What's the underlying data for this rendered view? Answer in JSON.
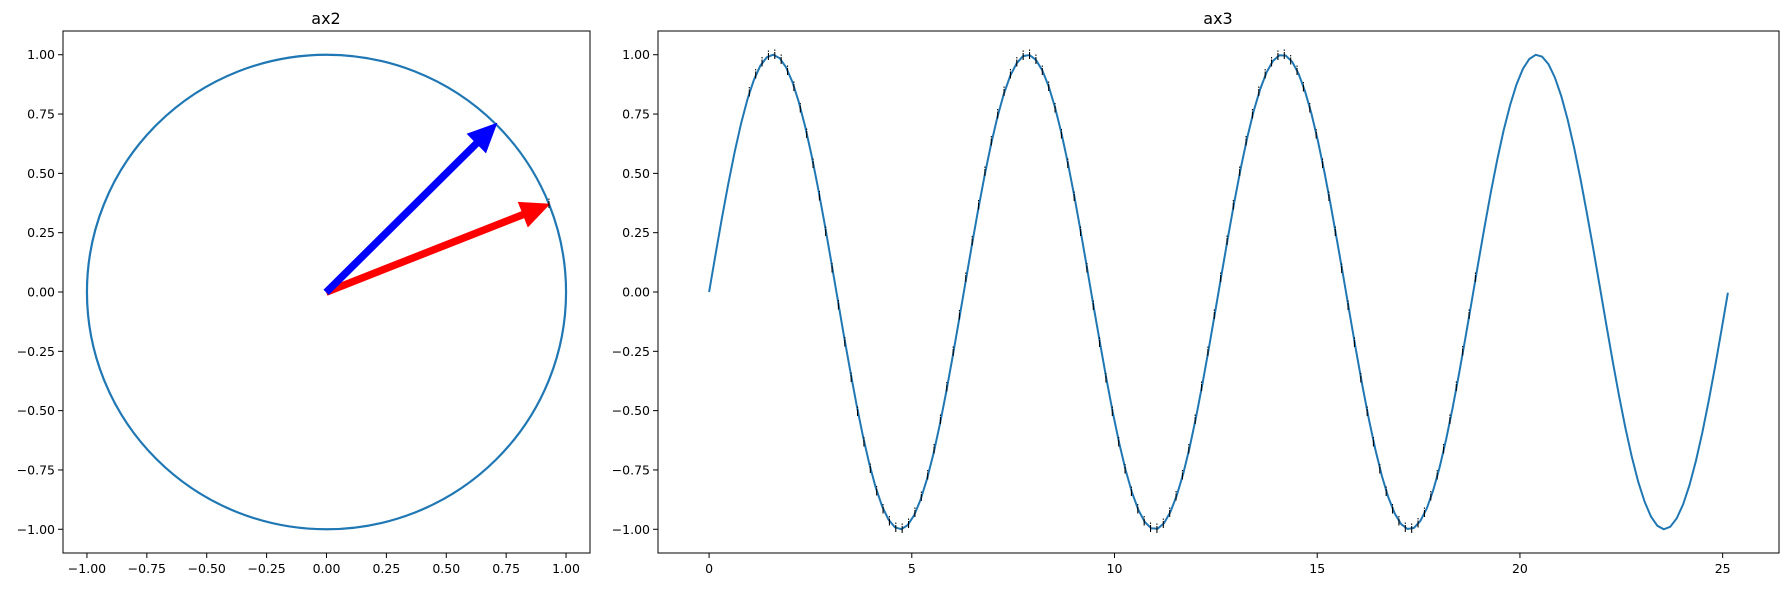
{
  "colors": {
    "curve": "#1f77b4",
    "arrow_red": "#ff0000",
    "arrow_blue": "#0000ff",
    "text": "#000000"
  },
  "ax2": {
    "title": "ax2",
    "type": "line",
    "xlim": [
      -1.1,
      1.1
    ],
    "ylim": [
      -1.1,
      1.1
    ],
    "xticks": [
      -1.0,
      -0.75,
      -0.5,
      -0.25,
      0.0,
      0.25,
      0.5,
      0.75,
      1.0
    ],
    "yticks": [
      -1.0,
      -0.75,
      -0.5,
      -0.25,
      0.0,
      0.25,
      0.5,
      0.75,
      1.0
    ],
    "xtick_labels": [
      "−1.00",
      "−0.75",
      "−0.50",
      "−0.25",
      "0.00",
      "0.25",
      "0.50",
      "0.75",
      "1.00"
    ],
    "ytick_labels": [
      "−1.00",
      "−0.75",
      "−0.50",
      "−0.25",
      "0.00",
      "0.25",
      "0.50",
      "0.75",
      "1.00"
    ],
    "circle": {
      "cx": 0,
      "cy": 0,
      "r": 1
    },
    "arrows": [
      {
        "name": "red-arrow",
        "from": [
          0,
          0
        ],
        "to": [
          0.93,
          0.37
        ],
        "color": "#ff0000"
      },
      {
        "name": "blue-arrow",
        "from": [
          0,
          0
        ],
        "to": [
          0.71,
          0.71
        ],
        "color": "#0000ff"
      }
    ],
    "annotation": {
      "text": "i",
      "x": 0.93,
      "y": 0.37
    }
  },
  "ax3": {
    "title": "ax3",
    "type": "line",
    "function": "sin(x)",
    "xrange": [
      0,
      25.13
    ],
    "samples": 160,
    "xlim": [
      -1.26,
      26.39
    ],
    "ylim": [
      -1.1,
      1.1
    ],
    "xticks": [
      0,
      5,
      10,
      15,
      20,
      25
    ],
    "yticks": [
      -1.0,
      -0.75,
      -0.5,
      -0.25,
      0.0,
      0.25,
      0.5,
      0.75,
      1.0
    ],
    "xtick_labels": [
      "0",
      "5",
      "10",
      "15",
      "20",
      "25"
    ],
    "ytick_labels": [
      "−1.00",
      "−0.75",
      "−0.50",
      "−0.25",
      "0.00",
      "0.25",
      "0.50",
      "0.75",
      "1.00"
    ],
    "annotation_text": "i",
    "annotation_range": [
      1.0,
      19.0
    ],
    "annotation_step": 0.1571
  },
  "chart_data": [
    {
      "type": "line",
      "title": "ax2",
      "xlabel": "",
      "ylabel": "",
      "xlim": [
        -1.1,
        1.1
      ],
      "ylim": [
        -1.1,
        1.1
      ],
      "series": [
        {
          "values": "unit circle x=cos(t), y=sin(t)"
        }
      ],
      "arrows": [
        [
          0,
          0,
          0.93,
          0.37
        ],
        [
          0,
          0,
          0.71,
          0.71
        ]
      ]
    },
    {
      "type": "line",
      "title": "ax3",
      "xlabel": "",
      "ylabel": "",
      "xlim": [
        -1.26,
        26.39
      ],
      "ylim": [
        -1.1,
        1.1
      ],
      "series": [
        {
          "values": "y = sin(x), x in [0, 25.13]"
        }
      ]
    }
  ]
}
